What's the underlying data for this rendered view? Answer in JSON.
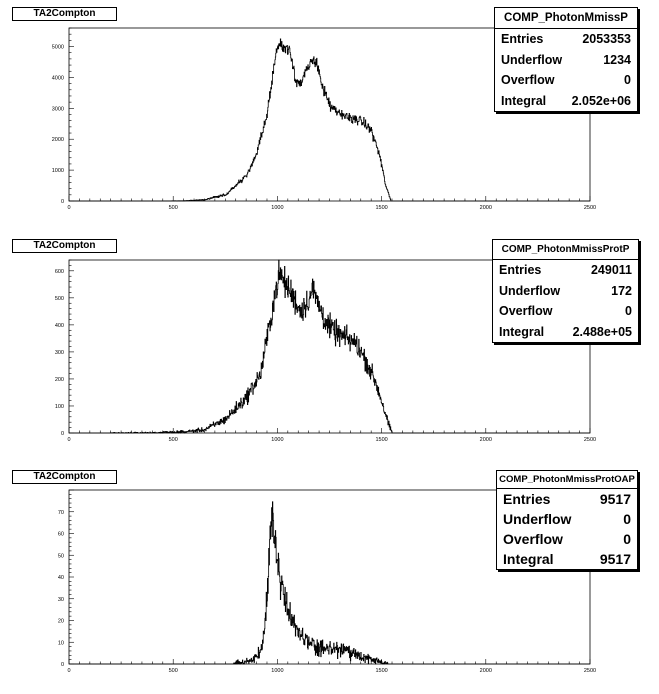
{
  "chart_data": [
    {
      "type": "histogram",
      "title": "TA2Compton",
      "stats": {
        "name": "COMP_PhotonMmissP",
        "rows": [
          {
            "label": "Entries",
            "value": "2053353"
          },
          {
            "label": "Underflow",
            "value": "1234"
          },
          {
            "label": "Overflow",
            "value": "0"
          },
          {
            "label": "Integral",
            "value": "2.052e+06"
          }
        ]
      },
      "xlim": [
        0,
        2500
      ],
      "ylim": [
        0,
        5600
      ],
      "xticks": [
        0,
        500,
        1000,
        1500,
        2000,
        2500
      ],
      "xtick_labels": [
        "0",
        "500",
        "1000",
        "1500",
        "2000",
        "2500"
      ],
      "yticks": [
        0,
        1000,
        2000,
        3000,
        4000,
        5000
      ],
      "ytick_labels": [
        "0",
        "1000",
        "2000",
        "3000",
        "4000",
        "5000"
      ],
      "profile": [
        [
          0,
          0
        ],
        [
          450,
          0
        ],
        [
          550,
          5
        ],
        [
          650,
          40
        ],
        [
          750,
          200
        ],
        [
          850,
          800
        ],
        [
          900,
          1500
        ],
        [
          950,
          2800
        ],
        [
          980,
          4200
        ],
        [
          1000,
          5050
        ],
        [
          1030,
          5000
        ],
        [
          1060,
          4900
        ],
        [
          1090,
          3900
        ],
        [
          1110,
          3780
        ],
        [
          1140,
          4200
        ],
        [
          1170,
          4550
        ],
        [
          1190,
          4500
        ],
        [
          1220,
          3600
        ],
        [
          1260,
          3000
        ],
        [
          1300,
          2800
        ],
        [
          1350,
          2700
        ],
        [
          1400,
          2600
        ],
        [
          1450,
          2300
        ],
        [
          1490,
          1500
        ],
        [
          1520,
          500
        ],
        [
          1545,
          0
        ]
      ],
      "noise": 70
    },
    {
      "type": "histogram",
      "title": "TA2Compton",
      "stats": {
        "name": "COMP_PhotonMmissProtP",
        "rows": [
          {
            "label": "Entries",
            "value": "249011"
          },
          {
            "label": "Underflow",
            "value": "172"
          },
          {
            "label": "Overflow",
            "value": "0"
          },
          {
            "label": "Integral",
            "value": "2.488e+05"
          }
        ]
      },
      "xlim": [
        0,
        2500
      ],
      "ylim": [
        0,
        640
      ],
      "xticks": [
        0,
        500,
        1000,
        1500,
        2000,
        2500
      ],
      "xtick_labels": [
        "0",
        "500",
        "1000",
        "1500",
        "2000",
        "2500"
      ],
      "yticks": [
        0,
        100,
        200,
        300,
        400,
        500,
        600
      ],
      "ytick_labels": [
        "0",
        "100",
        "200",
        "300",
        "400",
        "500",
        "600"
      ],
      "profile": [
        [
          0,
          0
        ],
        [
          200,
          0
        ],
        [
          400,
          1
        ],
        [
          550,
          4
        ],
        [
          650,
          12
        ],
        [
          750,
          50
        ],
        [
          850,
          130
        ],
        [
          920,
          220
        ],
        [
          960,
          390
        ],
        [
          990,
          520
        ],
        [
          1010,
          590
        ],
        [
          1040,
          550
        ],
        [
          1080,
          500
        ],
        [
          1110,
          450
        ],
        [
          1140,
          480
        ],
        [
          1170,
          530
        ],
        [
          1200,
          470
        ],
        [
          1240,
          400
        ],
        [
          1280,
          370
        ],
        [
          1330,
          350
        ],
        [
          1380,
          330
        ],
        [
          1430,
          260
        ],
        [
          1470,
          190
        ],
        [
          1500,
          120
        ],
        [
          1530,
          40
        ],
        [
          1550,
          0
        ]
      ],
      "noise": 18
    },
    {
      "type": "histogram",
      "title": "TA2Compton",
      "stats": {
        "name": "COMP_PhotonMmissProtOAP",
        "rows": [
          {
            "label": "Entries",
            "value": "9517"
          },
          {
            "label": "Underflow",
            "value": "0"
          },
          {
            "label": "Overflow",
            "value": "0"
          },
          {
            "label": "Integral",
            "value": "9517"
          }
        ]
      },
      "xlim": [
        0,
        2500
      ],
      "ylim": [
        0,
        80
      ],
      "xticks": [
        0,
        500,
        1000,
        1500,
        2000,
        2500
      ],
      "xtick_labels": [
        "0",
        "500",
        "1000",
        "1500",
        "2000",
        "2500"
      ],
      "yticks": [
        0,
        10,
        20,
        30,
        40,
        50,
        60,
        70
      ],
      "ytick_labels": [
        "0",
        "10",
        "20",
        "30",
        "40",
        "50",
        "60",
        "70"
      ],
      "profile": [
        [
          0,
          0
        ],
        [
          790,
          0
        ],
        [
          850,
          1
        ],
        [
          900,
          3
        ],
        [
          930,
          10
        ],
        [
          950,
          30
        ],
        [
          965,
          60
        ],
        [
          975,
          70
        ],
        [
          990,
          55
        ],
        [
          1010,
          40
        ],
        [
          1050,
          25
        ],
        [
          1100,
          14
        ],
        [
          1150,
          10
        ],
        [
          1200,
          7
        ],
        [
          1300,
          7
        ],
        [
          1350,
          5
        ],
        [
          1400,
          3
        ],
        [
          1450,
          2
        ],
        [
          1530,
          0
        ]
      ],
      "noise": 3.5
    }
  ]
}
